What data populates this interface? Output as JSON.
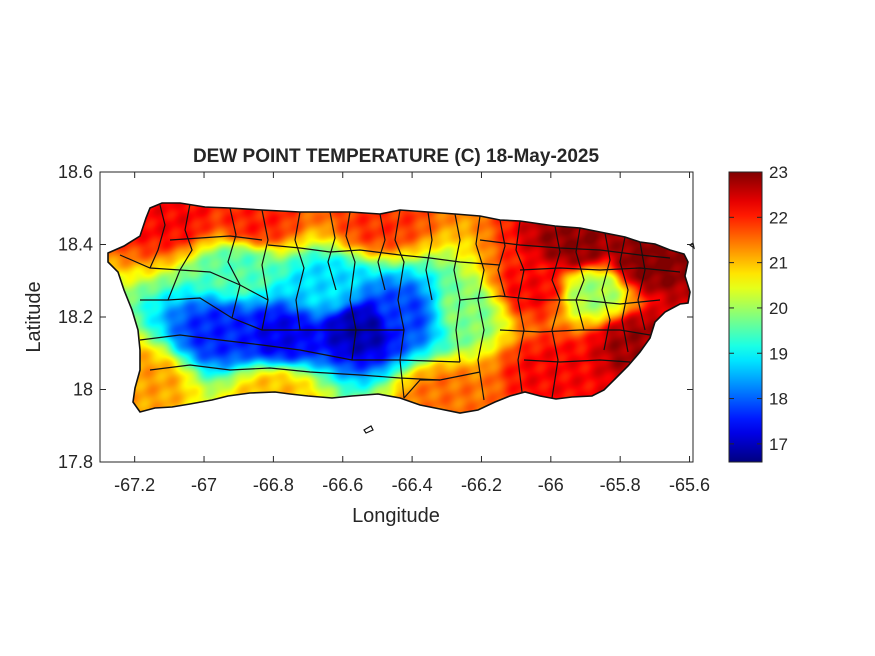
{
  "chart_data": {
    "type": "heatmap",
    "title": "DEW POINT TEMPERATURE (C) 18-May-2025",
    "xlabel": "Longitude",
    "ylabel": "Latitude",
    "xlim": [
      -67.3,
      -65.59
    ],
    "ylim": [
      17.8,
      18.6
    ],
    "x_ticks": [
      -67.2,
      -67,
      -66.8,
      -66.6,
      -66.4,
      -66.2,
      -66,
      -65.8,
      -65.6
    ],
    "x_tick_labels": [
      "-67.2",
      "-67",
      "-66.8",
      "-66.6",
      "-66.4",
      "-66.2",
      "-66",
      "-65.8",
      "-65.6"
    ],
    "y_ticks": [
      17.8,
      18,
      18.2,
      18.4,
      18.6
    ],
    "y_tick_labels": [
      "17.8",
      "18",
      "18.2",
      "18.4",
      "18.6"
    ],
    "colorbar": {
      "colormap": "jet",
      "clim": [
        16.6,
        23
      ],
      "ticks": [
        17,
        18,
        19,
        20,
        21,
        22,
        23
      ],
      "tick_labels": [
        "17",
        "18",
        "19",
        "20",
        "21",
        "22",
        "23"
      ]
    },
    "field": {
      "base_value": 20.6,
      "features": [
        {
          "lon": -66.55,
          "lat": 18.17,
          "value": 16.9
        },
        {
          "lon": -66.78,
          "lat": 18.15,
          "value": 17.3
        },
        {
          "lon": -66.95,
          "lat": 18.16,
          "value": 17.6
        },
        {
          "lon": -66.42,
          "lat": 18.21,
          "value": 17.8
        },
        {
          "lon": -66.65,
          "lat": 18.28,
          "value": 18.8
        },
        {
          "lon": -66.25,
          "lat": 18.22,
          "value": 19.8
        },
        {
          "lon": -66.9,
          "lat": 18.33,
          "value": 19.5
        },
        {
          "lon": -65.93,
          "lat": 18.4,
          "value": 22.9
        },
        {
          "lon": -65.72,
          "lat": 18.35,
          "value": 23.0
        },
        {
          "lon": -65.75,
          "lat": 18.13,
          "value": 22.8
        },
        {
          "lon": -66.0,
          "lat": 18.05,
          "value": 22.2
        },
        {
          "lon": -66.05,
          "lat": 18.28,
          "value": 22.2
        },
        {
          "lon": -65.88,
          "lat": 18.27,
          "value": 20.0
        },
        {
          "lon": -66.85,
          "lat": 18.47,
          "value": 22.0
        },
        {
          "lon": -66.5,
          "lat": 18.47,
          "value": 21.9
        },
        {
          "lon": -67.1,
          "lat": 18.48,
          "value": 22.2
        },
        {
          "lon": -67.18,
          "lat": 18.02,
          "value": 21.2
        },
        {
          "lon": -66.8,
          "lat": 17.99,
          "value": 21.0
        },
        {
          "lon": -66.3,
          "lat": 17.98,
          "value": 21.5
        }
      ]
    }
  }
}
